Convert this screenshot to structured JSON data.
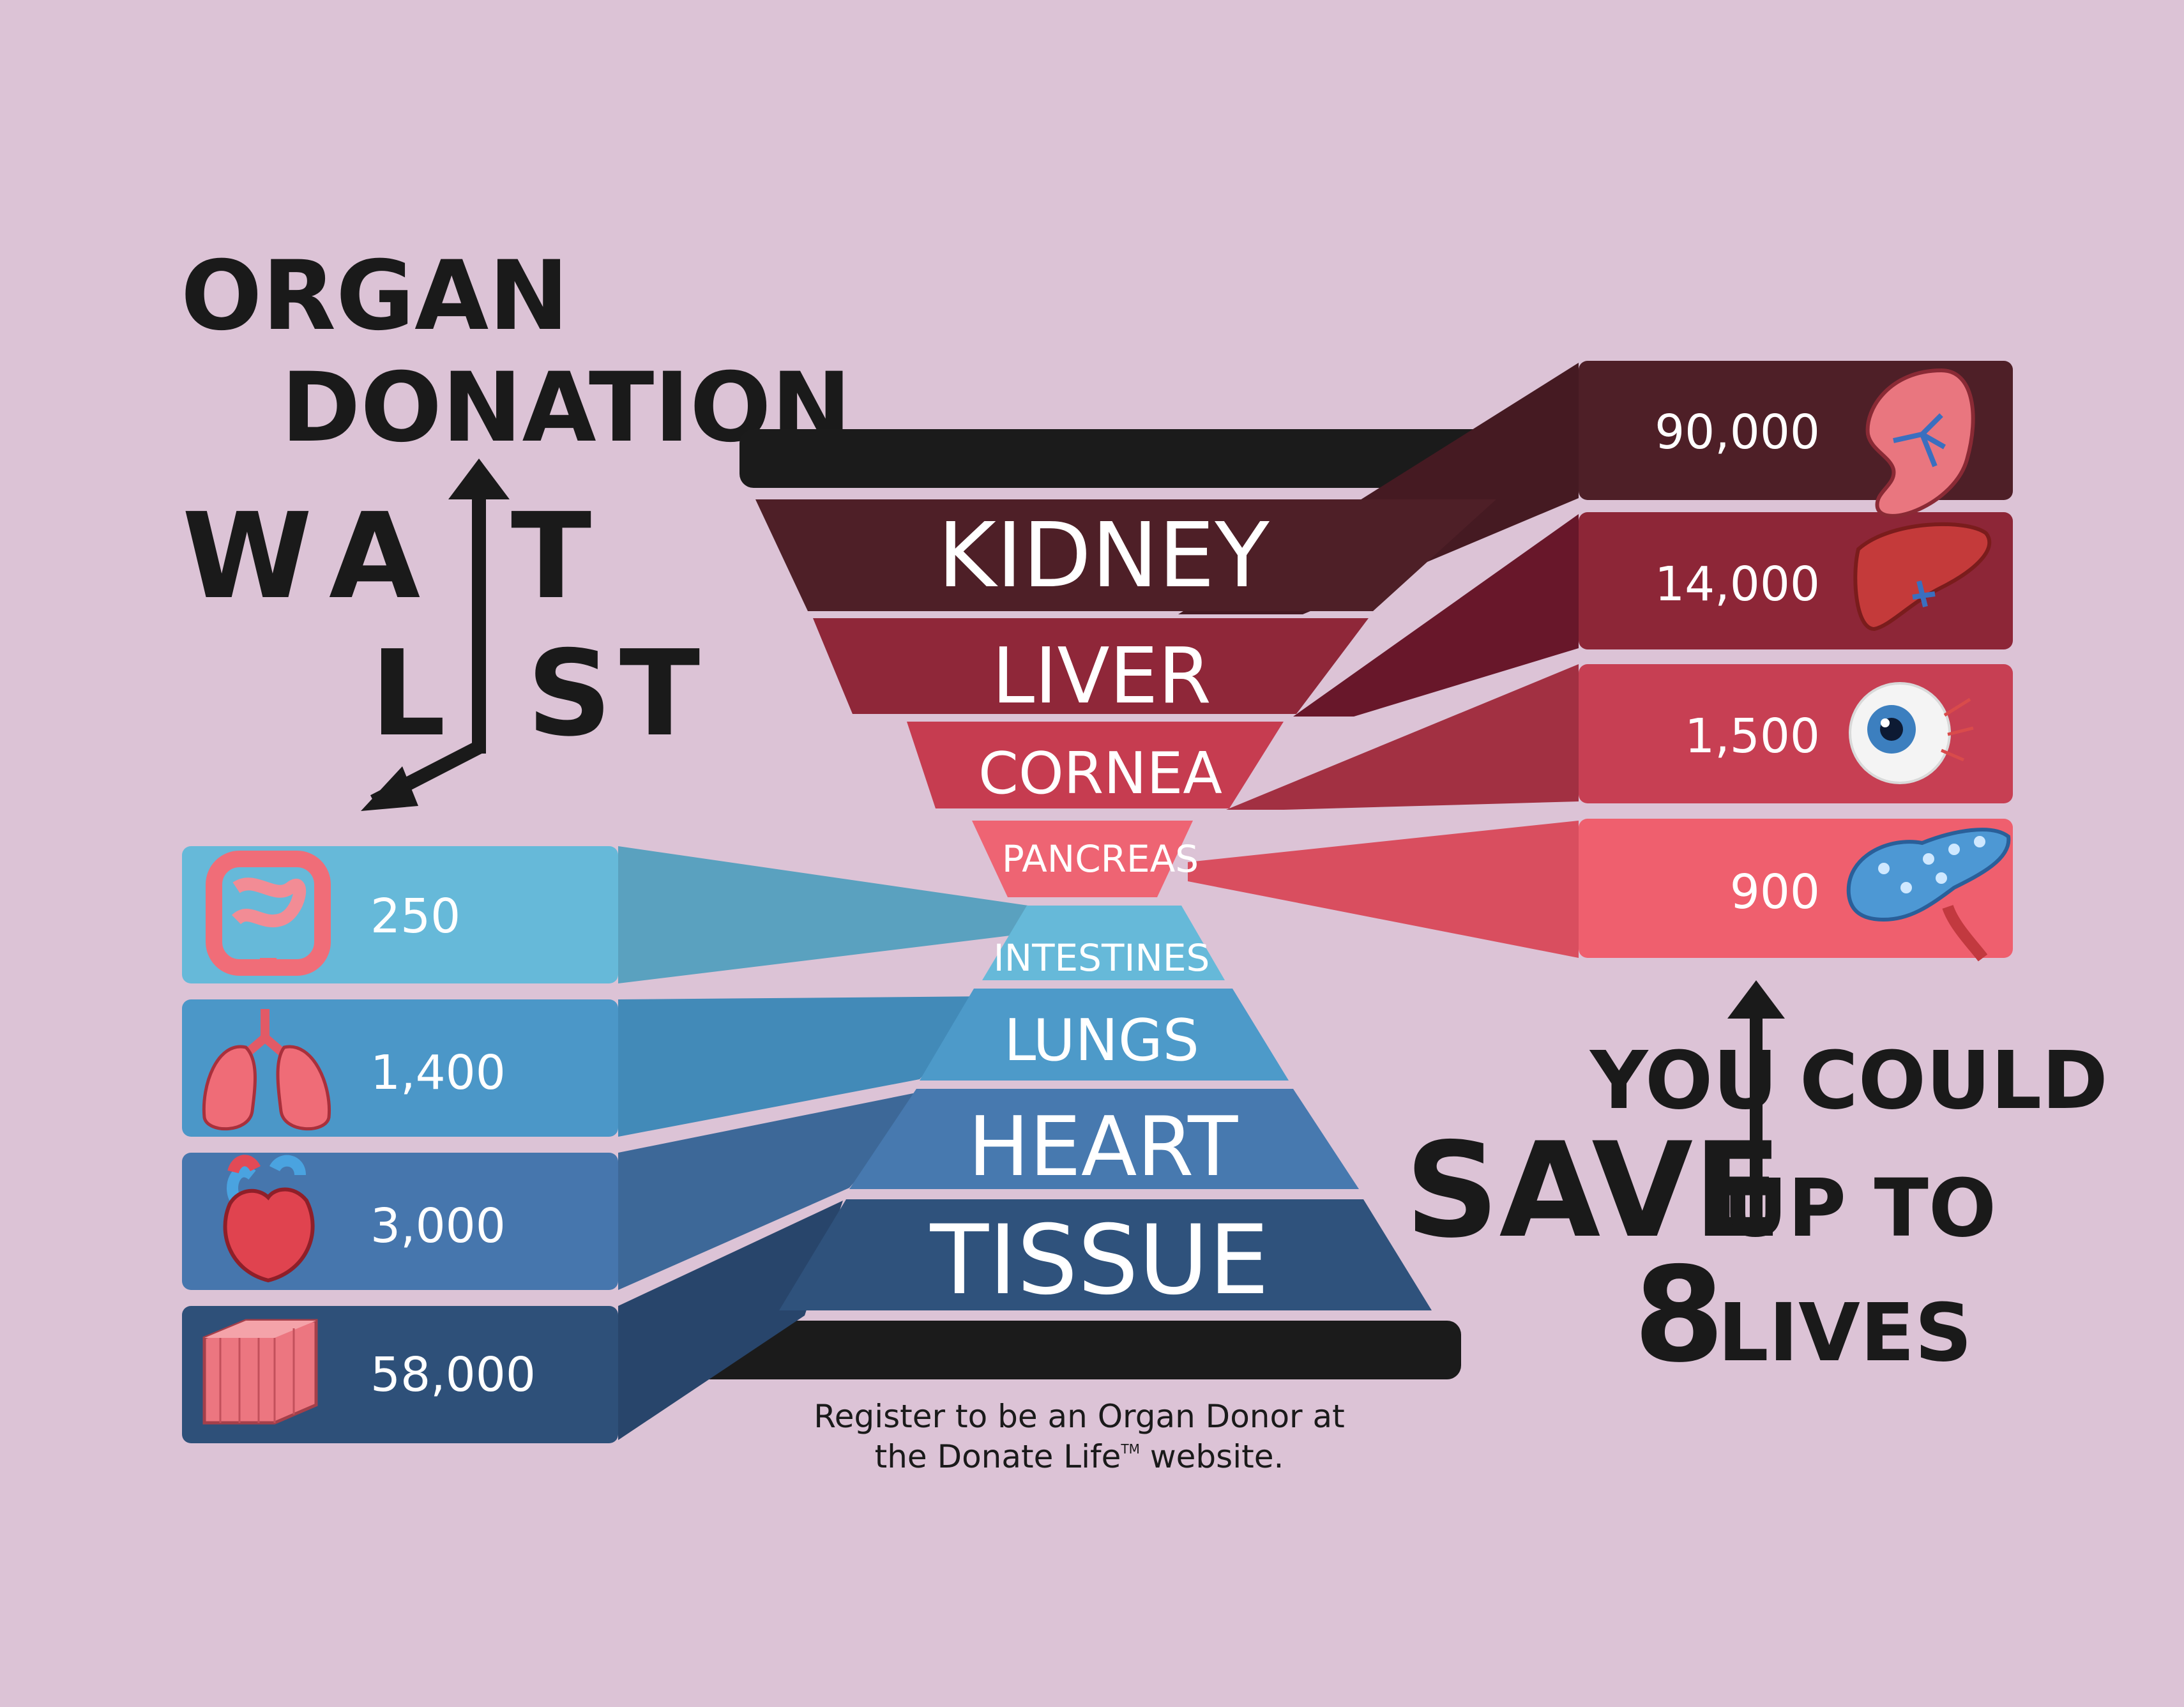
{
  "title": {
    "line1": "ORGAN",
    "line2": "DONATION",
    "wait_letters": [
      "W",
      "A",
      "T"
    ],
    "list_letters": [
      "L",
      "S",
      "T"
    ]
  },
  "organs_top": [
    {
      "name": "KIDNEY",
      "value": "90,000",
      "color": "#4e1f27",
      "icon": "kidney-icon"
    },
    {
      "name": "LIVER",
      "value": "14,000",
      "color": "#7a1c2a",
      "icon": "liver-icon"
    },
    {
      "name": "CORNEA",
      "value": "1,500",
      "color": "#c23a4e",
      "icon": "eye-icon"
    },
    {
      "name": "PANCREAS",
      "value": "900",
      "color": "#ef5f6e",
      "icon": "pancreas-icon"
    }
  ],
  "organs_bottom": [
    {
      "name": "INTESTINES",
      "value": "250",
      "color": "#64b8d8",
      "icon": "intestines-icon"
    },
    {
      "name": "LUNGS",
      "value": "1,400",
      "color": "#4b97c8",
      "icon": "lungs-icon"
    },
    {
      "name": "HEART",
      "value": "3,000",
      "color": "#4676ad",
      "icon": "heart-icon"
    },
    {
      "name": "TISSUE",
      "value": "58,000",
      "color": "#2e5079",
      "icon": "tissue-icon"
    }
  ],
  "slogan": {
    "you": "YOU",
    "could": "COULD",
    "save": "SAVE",
    "up_to": "UP TO",
    "eight": "8",
    "lives": "LIVES"
  },
  "footer": {
    "line1": "Register to be an Organ Donor at",
    "line2_a": "the Donate Life",
    "tm": "TM",
    "line2_b": " website."
  }
}
